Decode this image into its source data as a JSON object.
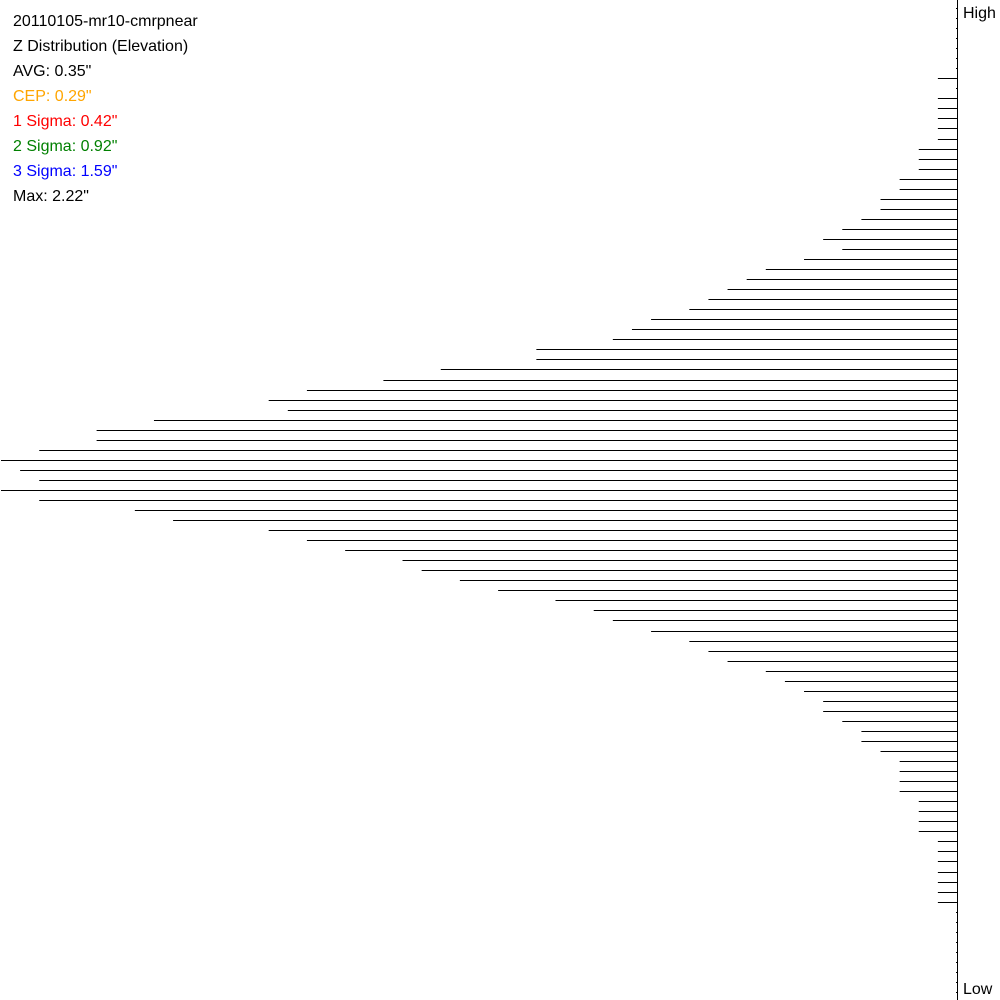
{
  "chart_data": {
    "type": "bar",
    "orientation": "horizontal",
    "title": "20110105-mr10-cmrpnear",
    "subtitle": "Z Distribution (Elevation)",
    "axis_top_label": "High",
    "axis_bottom_label": "Low",
    "stats": [
      {
        "label": "AVG: 0.35\"",
        "color": "#000000"
      },
      {
        "label": "CEP: 0.29\"",
        "color": "#FFA500"
      },
      {
        "label": "1 Sigma: 0.42\"",
        "color": "#FF0000"
      },
      {
        "label": "2 Sigma: 0.92\"",
        "color": "#008000"
      },
      {
        "label": "3 Sigma: 1.59\"",
        "color": "#0000FF"
      },
      {
        "label": "Max: 2.22\"",
        "color": "#000000"
      }
    ],
    "bar_color": "#000000",
    "values": [
      0,
      0,
      0,
      0,
      0,
      0,
      0,
      1,
      0,
      1,
      1,
      1,
      1,
      1,
      2,
      2,
      2,
      3,
      3,
      4,
      4,
      5,
      6,
      7,
      6,
      8,
      10,
      11,
      12,
      13,
      14,
      16,
      17,
      18,
      22,
      22,
      27,
      30,
      34,
      36,
      35,
      42,
      45,
      45,
      48,
      50,
      49,
      48,
      50,
      48,
      43,
      41,
      36,
      34,
      32,
      29,
      28,
      26,
      24,
      21,
      19,
      18,
      16,
      14,
      13,
      12,
      10,
      9,
      8,
      7,
      7,
      6,
      5,
      5,
      4,
      3,
      3,
      3,
      3,
      2,
      2,
      2,
      2,
      1,
      1,
      1,
      1,
      1,
      1,
      1,
      0,
      0,
      0,
      0,
      0,
      0,
      0,
      0,
      0
    ],
    "xlim": [
      0,
      50
    ]
  }
}
